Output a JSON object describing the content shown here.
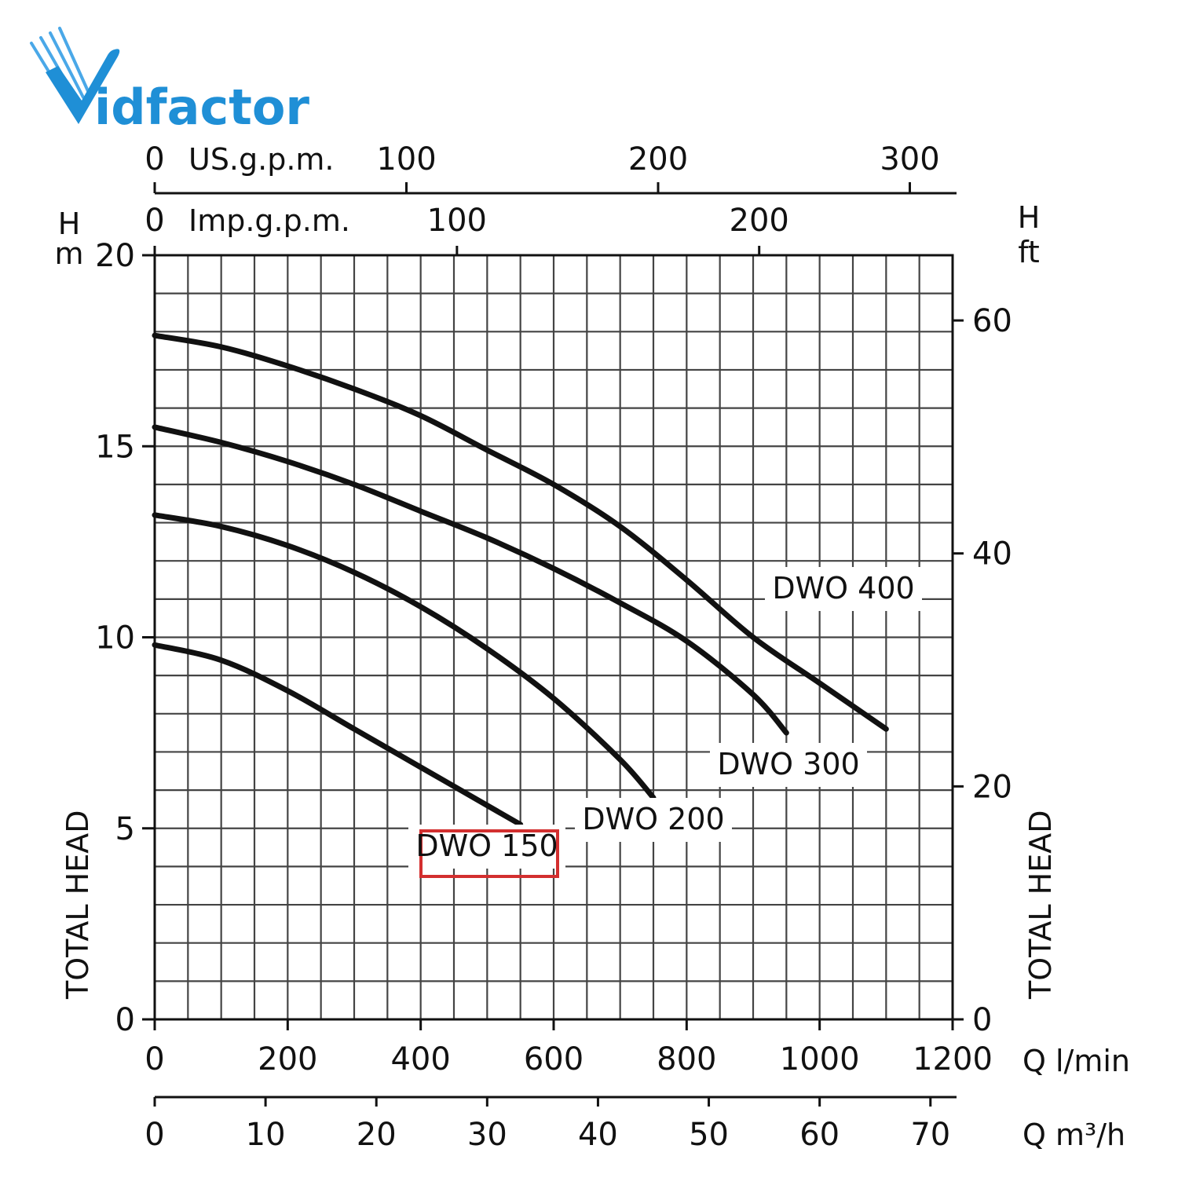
{
  "brand": {
    "logo_letter": "V",
    "logo_text": "idfactor",
    "colors": {
      "blue": "#1f8fd6",
      "orange": "#f4a51c"
    }
  },
  "chart_data": {
    "type": "line",
    "title": "",
    "grid": true,
    "highlight_color": "#d32f2f",
    "line_color": "#111111",
    "axes": {
      "x_main": {
        "unit": "Q l/min",
        "range": [
          0,
          1200
        ],
        "ticks": [
          "0",
          "200",
          "400",
          "600",
          "800",
          "1000",
          "1200"
        ]
      },
      "x_m3h": {
        "unit": "Q m³/h",
        "range": [
          0,
          72
        ],
        "ticks": [
          "0",
          "10",
          "20",
          "30",
          "40",
          "50",
          "60",
          "70"
        ]
      },
      "x_usgpm": {
        "unit": "US.g.p.m.",
        "range": [
          0,
          317
        ],
        "ticks": [
          "0",
          "100",
          "200",
          "300"
        ]
      },
      "x_impgpm": {
        "unit": "Imp.g.p.m.",
        "range": [
          0,
          264
        ],
        "ticks": [
          "0",
          "100",
          "200"
        ]
      },
      "y_left": {
        "unit_top": "H",
        "unit_bottom": "m",
        "label": "TOTAL HEAD",
        "range": [
          0,
          20
        ],
        "ticks": [
          "0",
          "5",
          "10",
          "15",
          "20"
        ]
      },
      "y_right": {
        "unit_top": "H",
        "unit_bottom": "ft",
        "label": "TOTAL HEAD",
        "range": [
          0,
          65.6
        ],
        "ticks": [
          "0",
          "20",
          "40",
          "60"
        ]
      }
    },
    "series": [
      {
        "name": "DWO 150",
        "highlighted": true,
        "x": [
          0,
          100,
          200,
          300,
          400,
          500,
          550
        ],
        "y": [
          9.8,
          9.4,
          8.6,
          7.6,
          6.6,
          5.6,
          5.1
        ]
      },
      {
        "name": "DWO 200",
        "highlighted": false,
        "x": [
          0,
          100,
          200,
          300,
          400,
          500,
          600,
          700,
          750
        ],
        "y": [
          13.2,
          12.9,
          12.4,
          11.7,
          10.8,
          9.7,
          8.4,
          6.8,
          5.8
        ]
      },
      {
        "name": "DWO 300",
        "highlighted": false,
        "x": [
          0,
          100,
          200,
          300,
          400,
          500,
          600,
          700,
          800,
          900,
          950
        ],
        "y": [
          15.5,
          15.1,
          14.6,
          14.0,
          13.3,
          12.6,
          11.8,
          10.9,
          9.9,
          8.5,
          7.5
        ]
      },
      {
        "name": "DWO 400",
        "highlighted": false,
        "x": [
          0,
          100,
          200,
          300,
          400,
          500,
          600,
          700,
          800,
          900,
          1000,
          1100
        ],
        "y": [
          17.9,
          17.6,
          17.1,
          16.5,
          15.8,
          14.9,
          14.0,
          12.9,
          11.5,
          10.0,
          8.8,
          7.6
        ]
      }
    ]
  }
}
